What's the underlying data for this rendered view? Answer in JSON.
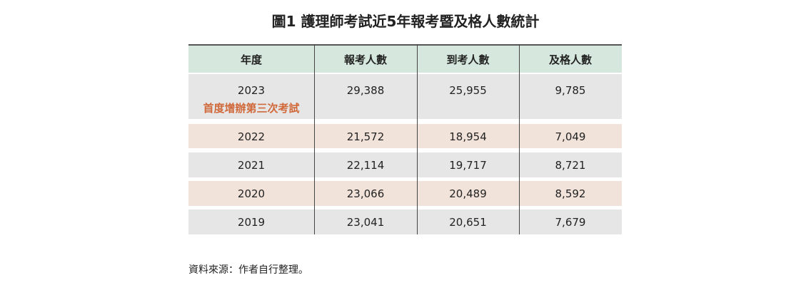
{
  "title": "圖1 護理師考試近5年報考暨及格人數統計",
  "table": {
    "header": [
      "年度",
      "報考人數",
      "到考人數",
      "及格人數"
    ],
    "rows": [
      [
        "2023",
        "29,388",
        "25,955",
        "9,785"
      ],
      [
        "2022",
        "21,572",
        "18,954",
        "7,049"
      ],
      [
        "2021",
        "22,114",
        "19,717",
        "8,721"
      ],
      [
        "2020",
        "23,066",
        "20,489",
        "8,592"
      ],
      [
        "2019",
        "23,041",
        "20,651",
        "7,679"
      ]
    ],
    "note": "首度增辦第三次考試"
  },
  "source": "資料來源：作者自行整理。"
}
